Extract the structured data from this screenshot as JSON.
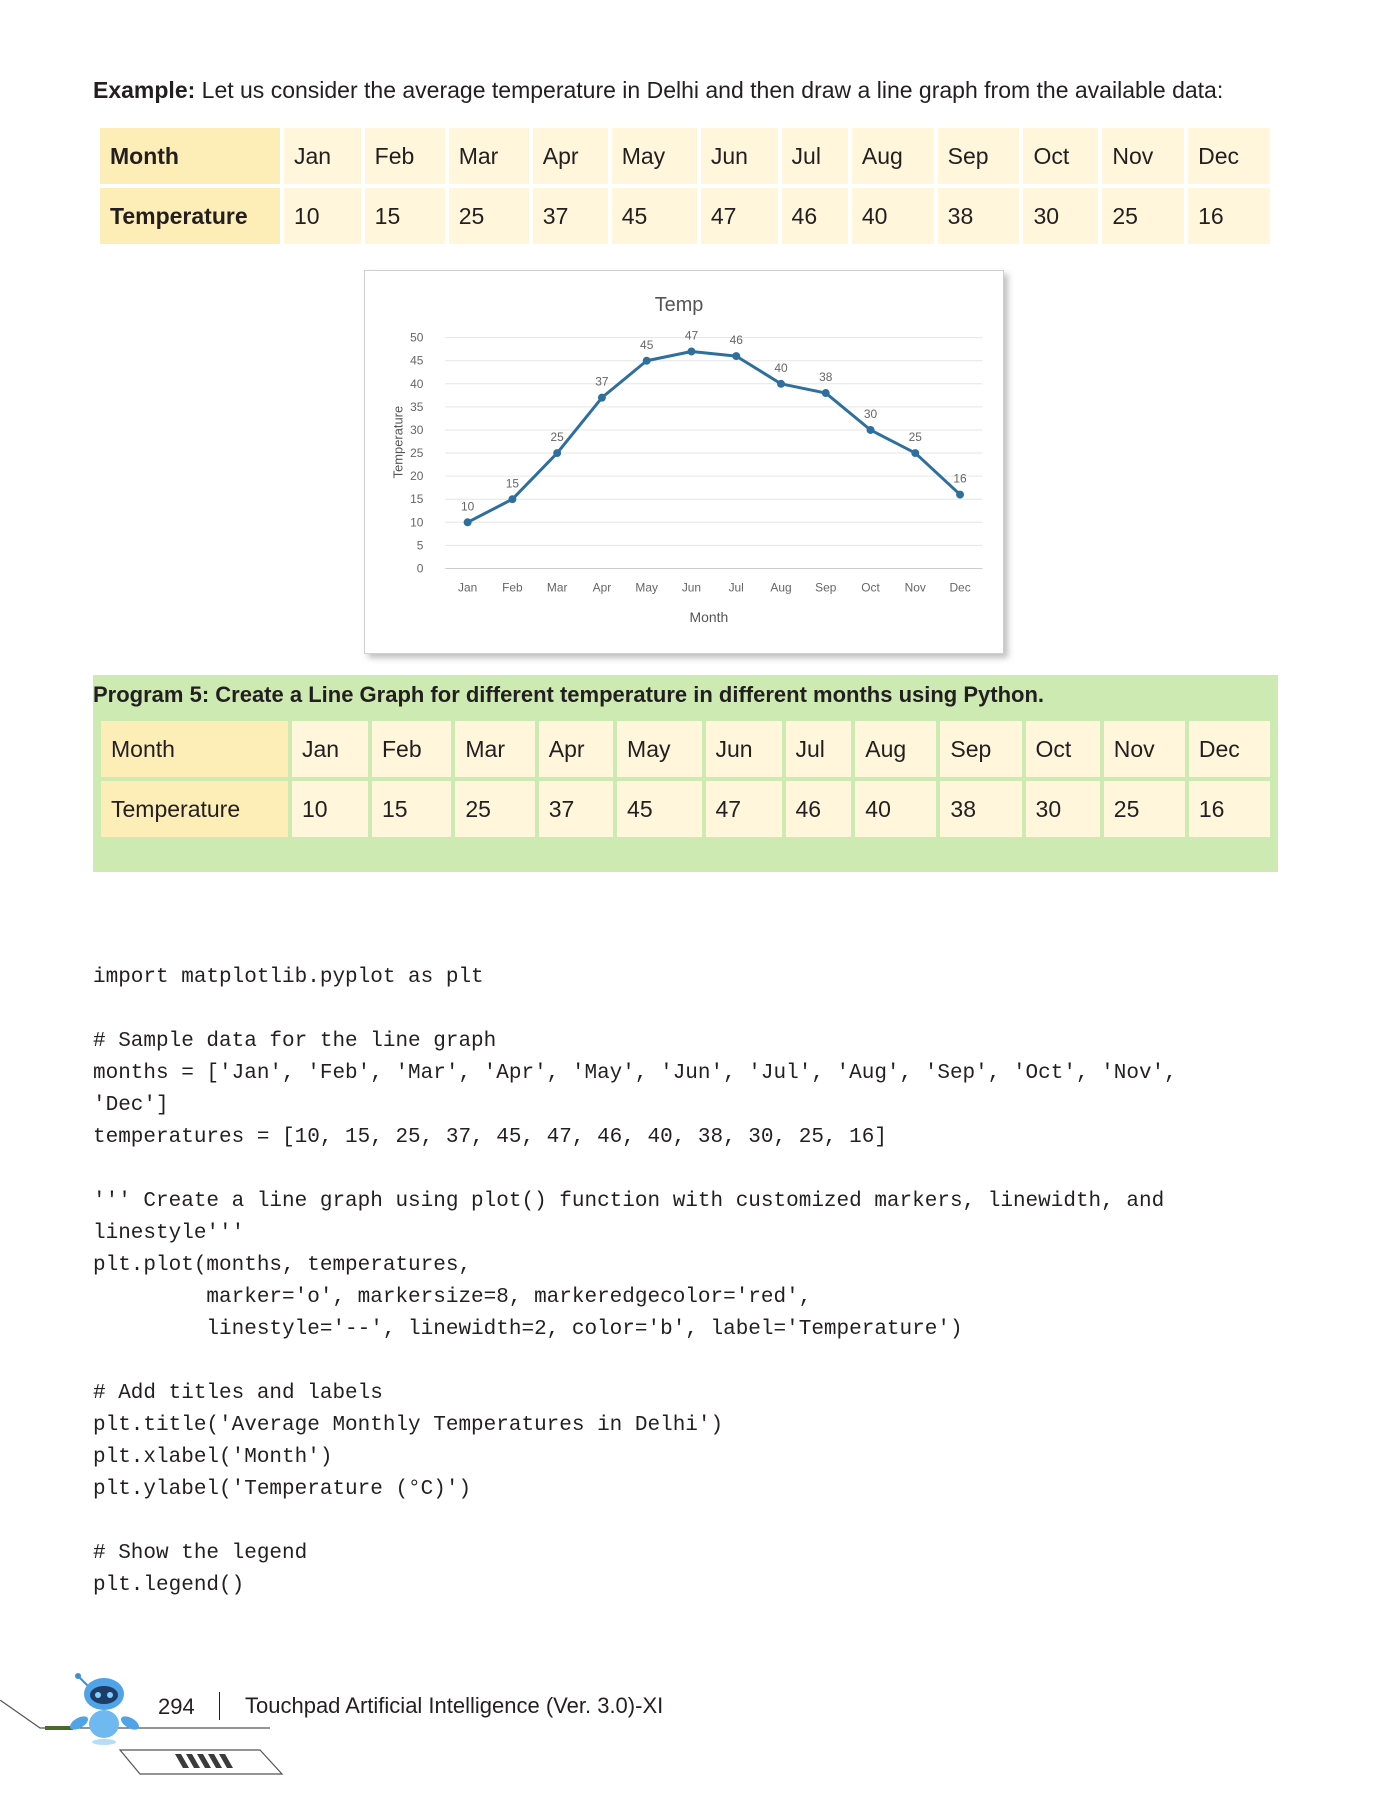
{
  "intro": {
    "bold": "Example:",
    "text": " Let us consider the average temperature in Delhi and then draw a line graph from the available data:"
  },
  "table1": {
    "row1_label": "Month",
    "row2_label": "Temperature",
    "months": [
      "Jan",
      "Feb",
      "Mar",
      "Apr",
      "May",
      "Jun",
      "Jul",
      "Aug",
      "Sep",
      "Oct",
      "Nov",
      "Dec"
    ],
    "temps": [
      "10",
      "15",
      "25",
      "37",
      "45",
      "47",
      "46",
      "40",
      "38",
      "30",
      "25",
      "16"
    ]
  },
  "chart_data": {
    "type": "line",
    "title": "Temp",
    "xlabel": "Month",
    "ylabel": "Temperature",
    "categories": [
      "Jan",
      "Feb",
      "Mar",
      "Apr",
      "May",
      "Jun",
      "Jul",
      "Aug",
      "Sep",
      "Oct",
      "Nov",
      "Dec"
    ],
    "values": [
      10,
      15,
      25,
      37,
      45,
      47,
      46,
      40,
      38,
      30,
      25,
      16
    ],
    "ylim": [
      0,
      50
    ],
    "yticks": [
      0,
      5,
      10,
      15,
      20,
      25,
      30,
      35,
      40,
      45,
      50
    ],
    "grid": true,
    "line_color": "#2e6f9e"
  },
  "program": {
    "title": "Program 5: Create a Line Graph for different temperature in different months using Python.",
    "row1_label": "Month",
    "row2_label": "Temperature",
    "months": [
      "Jan",
      "Feb",
      "Mar",
      "Apr",
      "May",
      "Jun",
      "Jul",
      "Aug",
      "Sep",
      "Oct",
      "Nov",
      "Dec"
    ],
    "temps": [
      "10",
      "15",
      "25",
      "37",
      "45",
      "47",
      "46",
      "40",
      "38",
      "30",
      "25",
      "16"
    ],
    "band_color": "#cdeab2"
  },
  "code": {
    "l1": "import matplotlib.pyplot as plt",
    "l2": "# Sample data for the line graph",
    "l3": "months = ['Jan', 'Feb', 'Mar', 'Apr', 'May', 'Jun', 'Jul', 'Aug', 'Sep', 'Oct', 'Nov',",
    "l4": "'Dec']",
    "l5": "temperatures = [10, 15, 25, 37, 45, 47, 46, 40, 38, 30, 25, 16]",
    "l6": "''' Create a line graph using plot() function with customized markers, linewidth, and",
    "l7": "linestyle'''",
    "l8": "plt.plot(months, temperatures,",
    "l9": "         marker='o', markersize=8, markeredgecolor='red',",
    "l10": "         linestyle='--', linewidth=2, color='b', label='Temperature')",
    "l11": "# Add titles and labels",
    "l12": "plt.title('Average Monthly Temperatures in Delhi')",
    "l13": "plt.xlabel('Month')",
    "l14": "plt.ylabel('Temperature (°C)')",
    "l15": "# Show the legend",
    "l16": "plt.legend()"
  },
  "footer": {
    "page_number": "294",
    "book_title": "Touchpad Artificial Intelligence (Ver. 3.0)-XI"
  }
}
